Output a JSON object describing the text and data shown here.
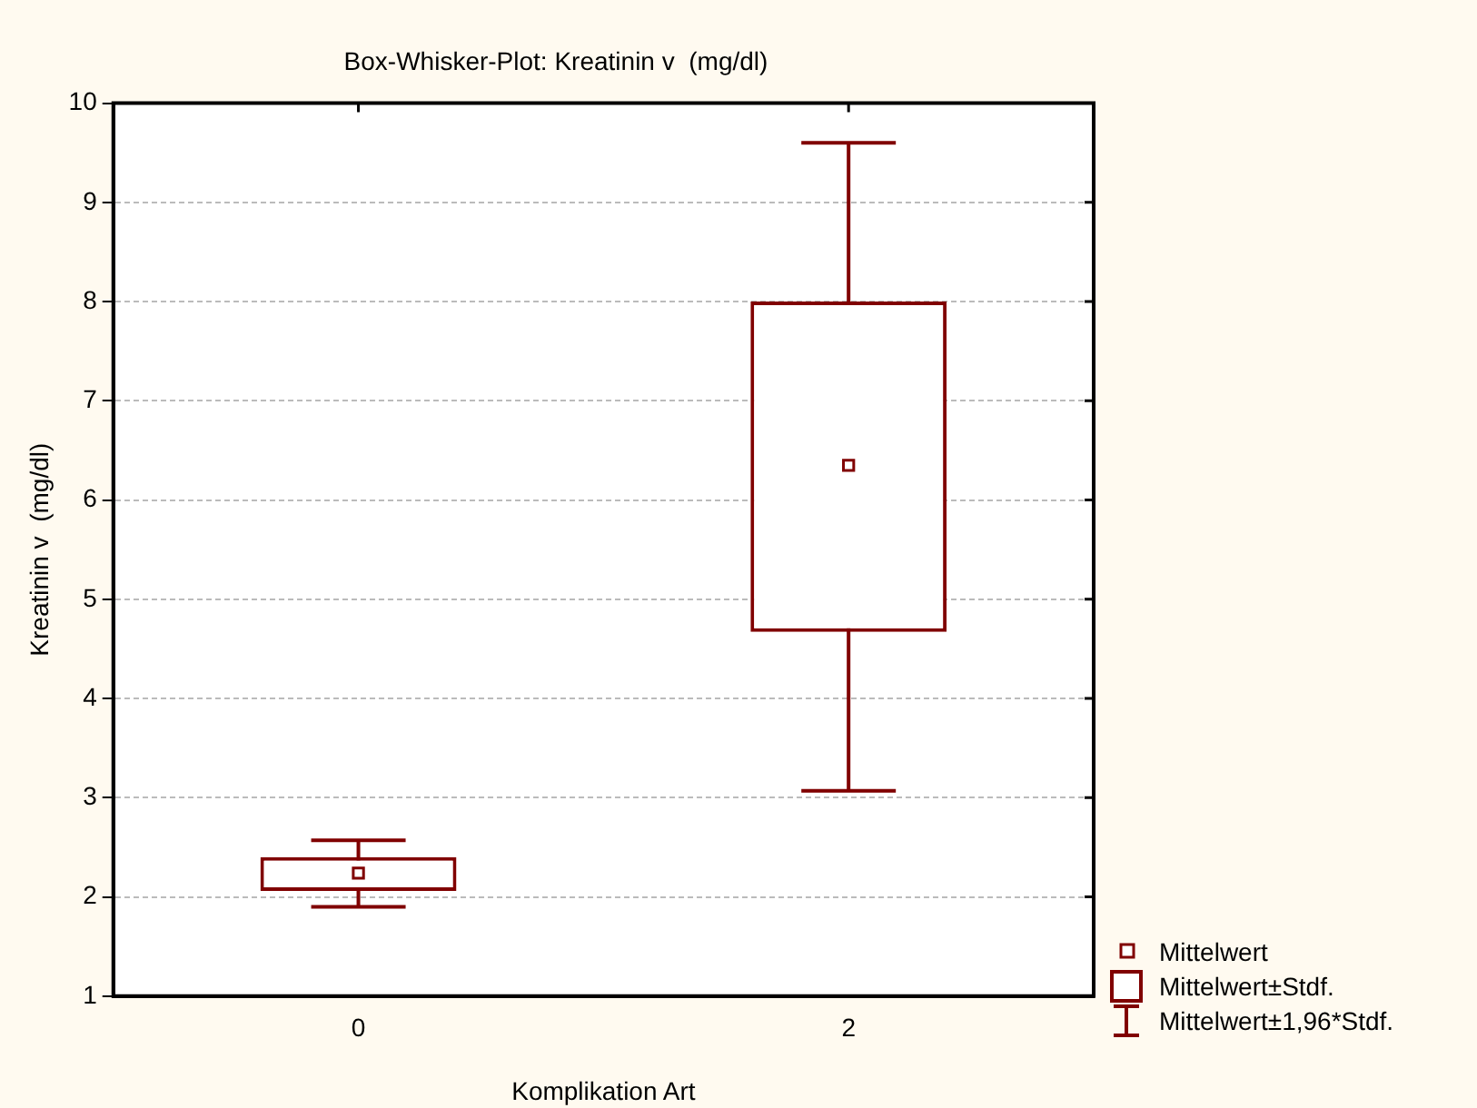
{
  "chart_data": {
    "type": "box",
    "title": "Box-Whisker-Plot: Kreatinin v  (mg/dl)",
    "xlabel": "Komplikation Art",
    "ylabel": "Kreatinin v  (mg/dl)",
    "categories": [
      "0",
      "2"
    ],
    "ylim": [
      1,
      10
    ],
    "yticks": [
      1,
      2,
      3,
      4,
      5,
      6,
      7,
      8,
      9,
      10
    ],
    "grid": "y",
    "series": [
      {
        "color": "#800000",
        "boxes": [
          {
            "low": 1.9,
            "q1": 2.06,
            "q3": 2.4,
            "high": 2.57,
            "mean": 2.24
          },
          {
            "low": 3.07,
            "q1": 4.67,
            "q3": 8.0,
            "high": 9.6,
            "mean": 6.35
          }
        ]
      }
    ],
    "annotations": [
      "Mittelwert",
      "Mittelwert±Stdf.",
      "Mittelwert±1,96*Stdf."
    ]
  }
}
